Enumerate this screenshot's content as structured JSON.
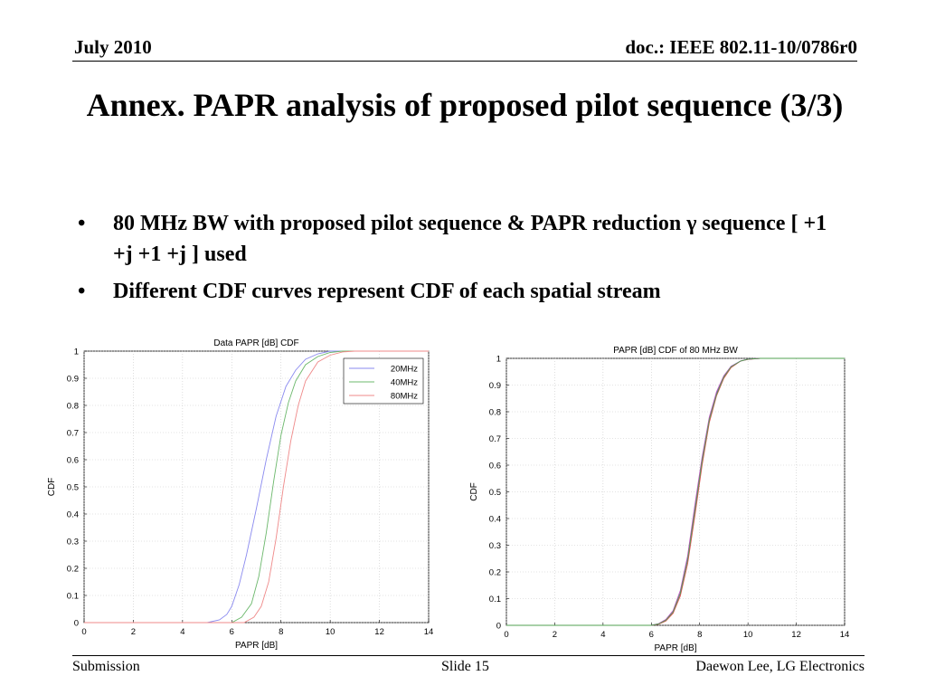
{
  "header": {
    "date": "July 2010",
    "doc": "doc.: IEEE 802.11-10/0786r0"
  },
  "title": "Annex. PAPR analysis of proposed pilot sequence (3/3)",
  "bullets": [
    {
      "dot": "•",
      "text": "80 MHz BW with proposed pilot sequence & PAPR reduction γ sequence [ +1 +j +1 +j ] used"
    },
    {
      "dot": "•",
      "text": "Different CDF curves represent CDF of each spatial stream"
    }
  ],
  "footer": {
    "left": "Submission",
    "center": "Slide 15",
    "right": "Daewon Lee, LG Electronics"
  },
  "colors": {
    "20MHz": "#8a8aef",
    "40MHz": "#6cb86c",
    "80MHz": "#ef8a8a",
    "s1": "#3e3ee0",
    "s2": "#e05050",
    "s3": "#c050c0",
    "s4": "#50a050"
  },
  "chart_data": [
    {
      "type": "line",
      "title": "Data PAPR [dB] CDF",
      "xlabel": "PAPR [dB]",
      "ylabel": "CDF",
      "xlim": [
        0,
        14
      ],
      "ylim": [
        0,
        1
      ],
      "xticks": [
        "0",
        "2",
        "4",
        "6",
        "8",
        "10",
        "12",
        "14"
      ],
      "yticks": [
        "0",
        "0.1",
        "0.2",
        "0.3",
        "0.4",
        "0.5",
        "0.6",
        "0.7",
        "0.8",
        "0.9",
        "1"
      ],
      "grid": true,
      "legend_position": "top-right",
      "series": [
        {
          "name": "20MHz",
          "color_key": "20MHz",
          "x": [
            0,
            5.0,
            5.5,
            5.8,
            6.0,
            6.3,
            6.6,
            7.0,
            7.4,
            7.8,
            8.2,
            8.6,
            9.0,
            9.5,
            10.0,
            10.5,
            11.0,
            14.0
          ],
          "y": [
            0,
            0,
            0.01,
            0.03,
            0.06,
            0.14,
            0.25,
            0.42,
            0.6,
            0.76,
            0.87,
            0.93,
            0.97,
            0.99,
            1.0,
            1.0,
            1.0,
            1.0
          ]
        },
        {
          "name": "40MHz",
          "color_key": "40MHz",
          "x": [
            0,
            6.0,
            6.4,
            6.8,
            7.1,
            7.4,
            7.7,
            8.0,
            8.3,
            8.6,
            9.0,
            9.5,
            10.0,
            10.5,
            11.0,
            14.0
          ],
          "y": [
            0,
            0,
            0.02,
            0.07,
            0.17,
            0.33,
            0.52,
            0.69,
            0.81,
            0.89,
            0.95,
            0.98,
            0.995,
            1.0,
            1.0,
            1.0
          ]
        },
        {
          "name": "80MHz",
          "color_key": "80MHz",
          "x": [
            0,
            6.5,
            6.9,
            7.2,
            7.5,
            7.8,
            8.1,
            8.4,
            8.7,
            9.0,
            9.5,
            10.0,
            10.5,
            11.0,
            14.0
          ],
          "y": [
            0,
            0,
            0.02,
            0.06,
            0.15,
            0.31,
            0.5,
            0.67,
            0.8,
            0.89,
            0.96,
            0.985,
            0.997,
            1.0,
            1.0
          ]
        }
      ]
    },
    {
      "type": "line",
      "title": "PAPR [dB] CDF of 80 MHz BW",
      "xlabel": "PAPR [dB]",
      "ylabel": "CDF",
      "xlim": [
        0,
        14
      ],
      "ylim": [
        0,
        1
      ],
      "xticks": [
        "0",
        "2",
        "4",
        "6",
        "8",
        "10",
        "12",
        "14"
      ],
      "yticks": [
        "0",
        "0.1",
        "0.2",
        "0.3",
        "0.4",
        "0.5",
        "0.6",
        "0.7",
        "0.8",
        "0.9",
        "1"
      ],
      "grid": true,
      "series": [
        {
          "color_key": "s1",
          "x": [
            0,
            6.0,
            6.3,
            6.6,
            6.9,
            7.2,
            7.5,
            7.8,
            8.1,
            8.4,
            8.7,
            9.0,
            9.3,
            9.7,
            10.0,
            10.5,
            14.0
          ],
          "y": [
            0,
            0,
            0.005,
            0.02,
            0.05,
            0.12,
            0.25,
            0.43,
            0.62,
            0.77,
            0.87,
            0.93,
            0.97,
            0.99,
            0.997,
            1.0,
            1.0
          ]
        },
        {
          "color_key": "s2",
          "x": [
            0,
            6.0,
            6.3,
            6.6,
            6.9,
            7.2,
            7.5,
            7.8,
            8.1,
            8.4,
            8.7,
            9.0,
            9.3,
            9.7,
            10.0,
            10.5,
            14.0
          ],
          "y": [
            0,
            0,
            0.004,
            0.016,
            0.045,
            0.11,
            0.23,
            0.41,
            0.6,
            0.76,
            0.86,
            0.925,
            0.965,
            0.99,
            0.996,
            1.0,
            1.0
          ]
        },
        {
          "color_key": "s3",
          "x": [
            0,
            6.0,
            6.3,
            6.6,
            6.9,
            7.2,
            7.5,
            7.8,
            8.1,
            8.4,
            8.7,
            9.0,
            9.3,
            9.7,
            10.0,
            10.5,
            14.0
          ],
          "y": [
            0,
            0,
            0.006,
            0.022,
            0.055,
            0.13,
            0.26,
            0.45,
            0.63,
            0.78,
            0.875,
            0.935,
            0.97,
            0.99,
            0.997,
            1.0,
            1.0
          ]
        },
        {
          "color_key": "s4",
          "x": [
            0,
            6.0,
            6.3,
            6.6,
            6.9,
            7.2,
            7.5,
            7.8,
            8.1,
            8.4,
            8.7,
            9.0,
            9.3,
            9.7,
            10.0,
            10.5,
            14.0
          ],
          "y": [
            0,
            0,
            0.005,
            0.019,
            0.05,
            0.12,
            0.245,
            0.43,
            0.615,
            0.77,
            0.865,
            0.93,
            0.968,
            0.99,
            0.997,
            1.0,
            1.0
          ]
        }
      ]
    }
  ]
}
